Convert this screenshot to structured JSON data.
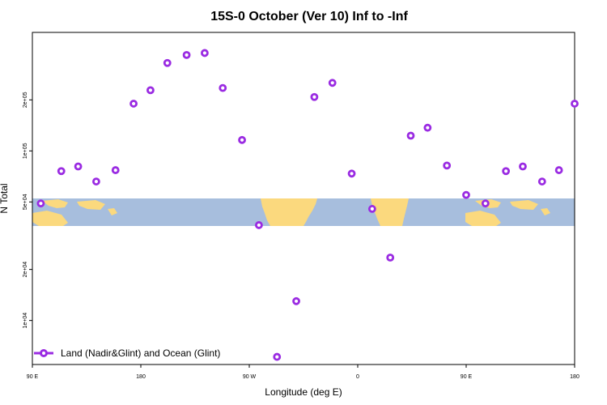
{
  "chart_data": {
    "type": "scatter",
    "title": "15S-0 October (Ver 10)   Inf to -Inf",
    "xlabel": "Longitude (deg E)",
    "ylabel": "N Total",
    "x_scale": "linear",
    "y_scale": "log",
    "xlim": [
      90,
      540
    ],
    "ylim": [
      5500,
      500000
    ],
    "x_ticks": [
      {
        "value": 90,
        "label": "90 E"
      },
      {
        "value": 180,
        "label": "180"
      },
      {
        "value": 270,
        "label": "90 W"
      },
      {
        "value": 360,
        "label": "0"
      },
      {
        "value": 450,
        "label": "90 E"
      },
      {
        "value": 540,
        "label": "180"
      }
    ],
    "y_ticks": [
      {
        "value": 10000,
        "label": "1e+04"
      },
      {
        "value": 20000,
        "label": "2e+04"
      },
      {
        "value": 50000,
        "label": "5e+04"
      },
      {
        "value": 100000,
        "label": "1e+05"
      },
      {
        "value": 200000,
        "label": "2e+05"
      }
    ],
    "grid": false,
    "legend": {
      "position": "bottom-left"
    },
    "series": [
      {
        "name": "Land (Nadir&Glint) and Ocean (Glint)",
        "color": "#9a2be2",
        "marker": "open-circle",
        "points": [
          [
            97,
            49000
          ],
          [
            114,
            76000
          ],
          [
            128,
            81000
          ],
          [
            143,
            66000
          ],
          [
            159,
            77000
          ],
          [
            174,
            190000
          ],
          [
            188,
            228000
          ],
          [
            202,
            330000
          ],
          [
            218,
            368000
          ],
          [
            233,
            378000
          ],
          [
            248,
            235000
          ],
          [
            264,
            116000
          ],
          [
            278,
            36500
          ],
          [
            293,
            6100
          ],
          [
            309,
            13000
          ],
          [
            324,
            208000
          ],
          [
            339,
            252000
          ],
          [
            355,
            73500
          ],
          [
            372,
            45500
          ],
          [
            387,
            23500
          ],
          [
            404,
            123000
          ],
          [
            418,
            137000
          ],
          [
            434,
            82000
          ],
          [
            450,
            55000
          ],
          [
            466,
            49000
          ],
          [
            483,
            76000
          ],
          [
            497,
            81000
          ],
          [
            513,
            66000
          ],
          [
            527,
            77000
          ],
          [
            540,
            190000
          ]
        ]
      }
    ]
  },
  "colors": {
    "ocean": "#a7bedd",
    "land": "#fbd97e",
    "frame": "#000000"
  }
}
